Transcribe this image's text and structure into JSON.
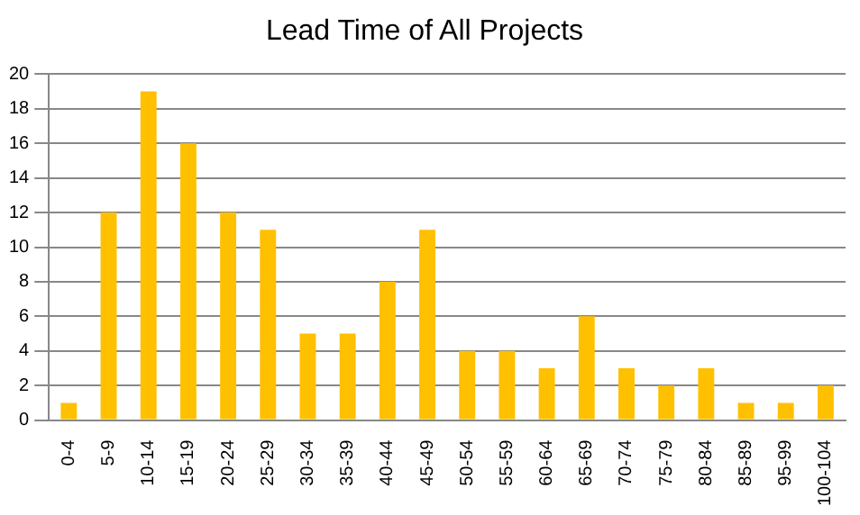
{
  "chart_data": {
    "type": "bar",
    "title": "Lead Time of All Projects",
    "categories": [
      "0-4",
      "5-9",
      "10-14",
      "15-19",
      "20-24",
      "25-29",
      "30-34",
      "35-39",
      "40-44",
      "45-49",
      "50-54",
      "55-59",
      "60-64",
      "65-69",
      "70-74",
      "75-79",
      "80-84",
      "85-89",
      "95-99",
      "100-104"
    ],
    "values": [
      1,
      12,
      19,
      16,
      12,
      11,
      5,
      5,
      8,
      11,
      4,
      4,
      3,
      6,
      3,
      2,
      3,
      1,
      1,
      2
    ],
    "color": "#ffc000",
    "ylim": [
      0,
      20
    ],
    "yticks": [
      0,
      2,
      4,
      6,
      8,
      10,
      12,
      14,
      16,
      18,
      20
    ],
    "grid": "y",
    "legend": false
  }
}
